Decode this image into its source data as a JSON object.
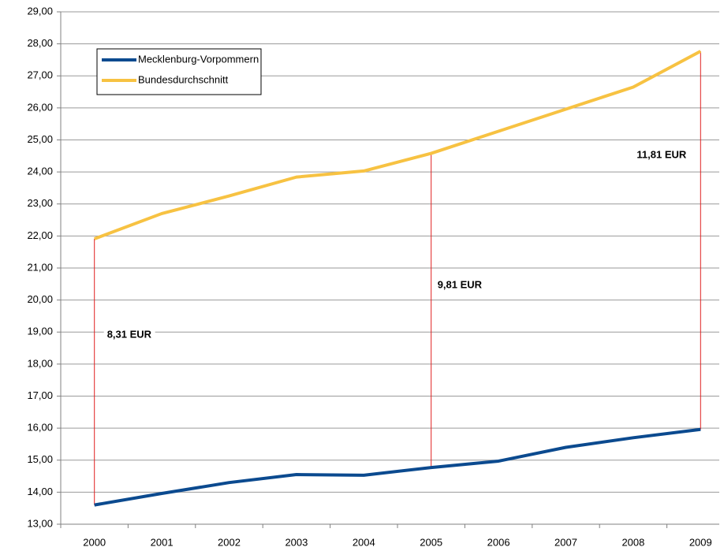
{
  "chart_data": {
    "type": "line",
    "categories": [
      "2000",
      "2001",
      "2002",
      "2003",
      "2004",
      "2005",
      "2006",
      "2007",
      "2008",
      "2009"
    ],
    "series": [
      {
        "name": "Mecklenburg-Vorpommern",
        "color": "#0b4a8f",
        "values": [
          13.6,
          13.96,
          14.3,
          14.55,
          14.53,
          14.77,
          14.97,
          15.4,
          15.7,
          15.96
        ]
      },
      {
        "name": "Bundesdurchschnitt",
        "color": "#f7c242",
        "values": [
          21.91,
          22.7,
          23.25,
          23.84,
          24.03,
          24.58,
          25.27,
          25.96,
          26.65,
          27.77
        ]
      }
    ],
    "ylim": [
      13,
      29
    ],
    "yticks": [
      {
        "value": 13,
        "label": "13,00"
      },
      {
        "value": 14,
        "label": "14,00"
      },
      {
        "value": 15,
        "label": "15,00"
      },
      {
        "value": 16,
        "label": "16,00"
      },
      {
        "value": 17,
        "label": "17,00"
      },
      {
        "value": 18,
        "label": "18,00"
      },
      {
        "value": 19,
        "label": "19,00"
      },
      {
        "value": 20,
        "label": "20,00"
      },
      {
        "value": 21,
        "label": "21,00"
      },
      {
        "value": 22,
        "label": "22,00"
      },
      {
        "value": 23,
        "label": "23,00"
      },
      {
        "value": 24,
        "label": "24,00"
      },
      {
        "value": 25,
        "label": "25,00"
      },
      {
        "value": 26,
        "label": "26,00"
      },
      {
        "value": 27,
        "label": "27,00"
      },
      {
        "value": 28,
        "label": "28,00"
      },
      {
        "value": 29,
        "label": "29,00"
      }
    ],
    "grid": true,
    "legend": "upper left",
    "annotations": [
      {
        "label": "8,31 EUR",
        "x": "2000"
      },
      {
        "label": "9,81 EUR",
        "x": "2005"
      },
      {
        "label": "11,81 EUR",
        "x": "2009"
      }
    ]
  }
}
